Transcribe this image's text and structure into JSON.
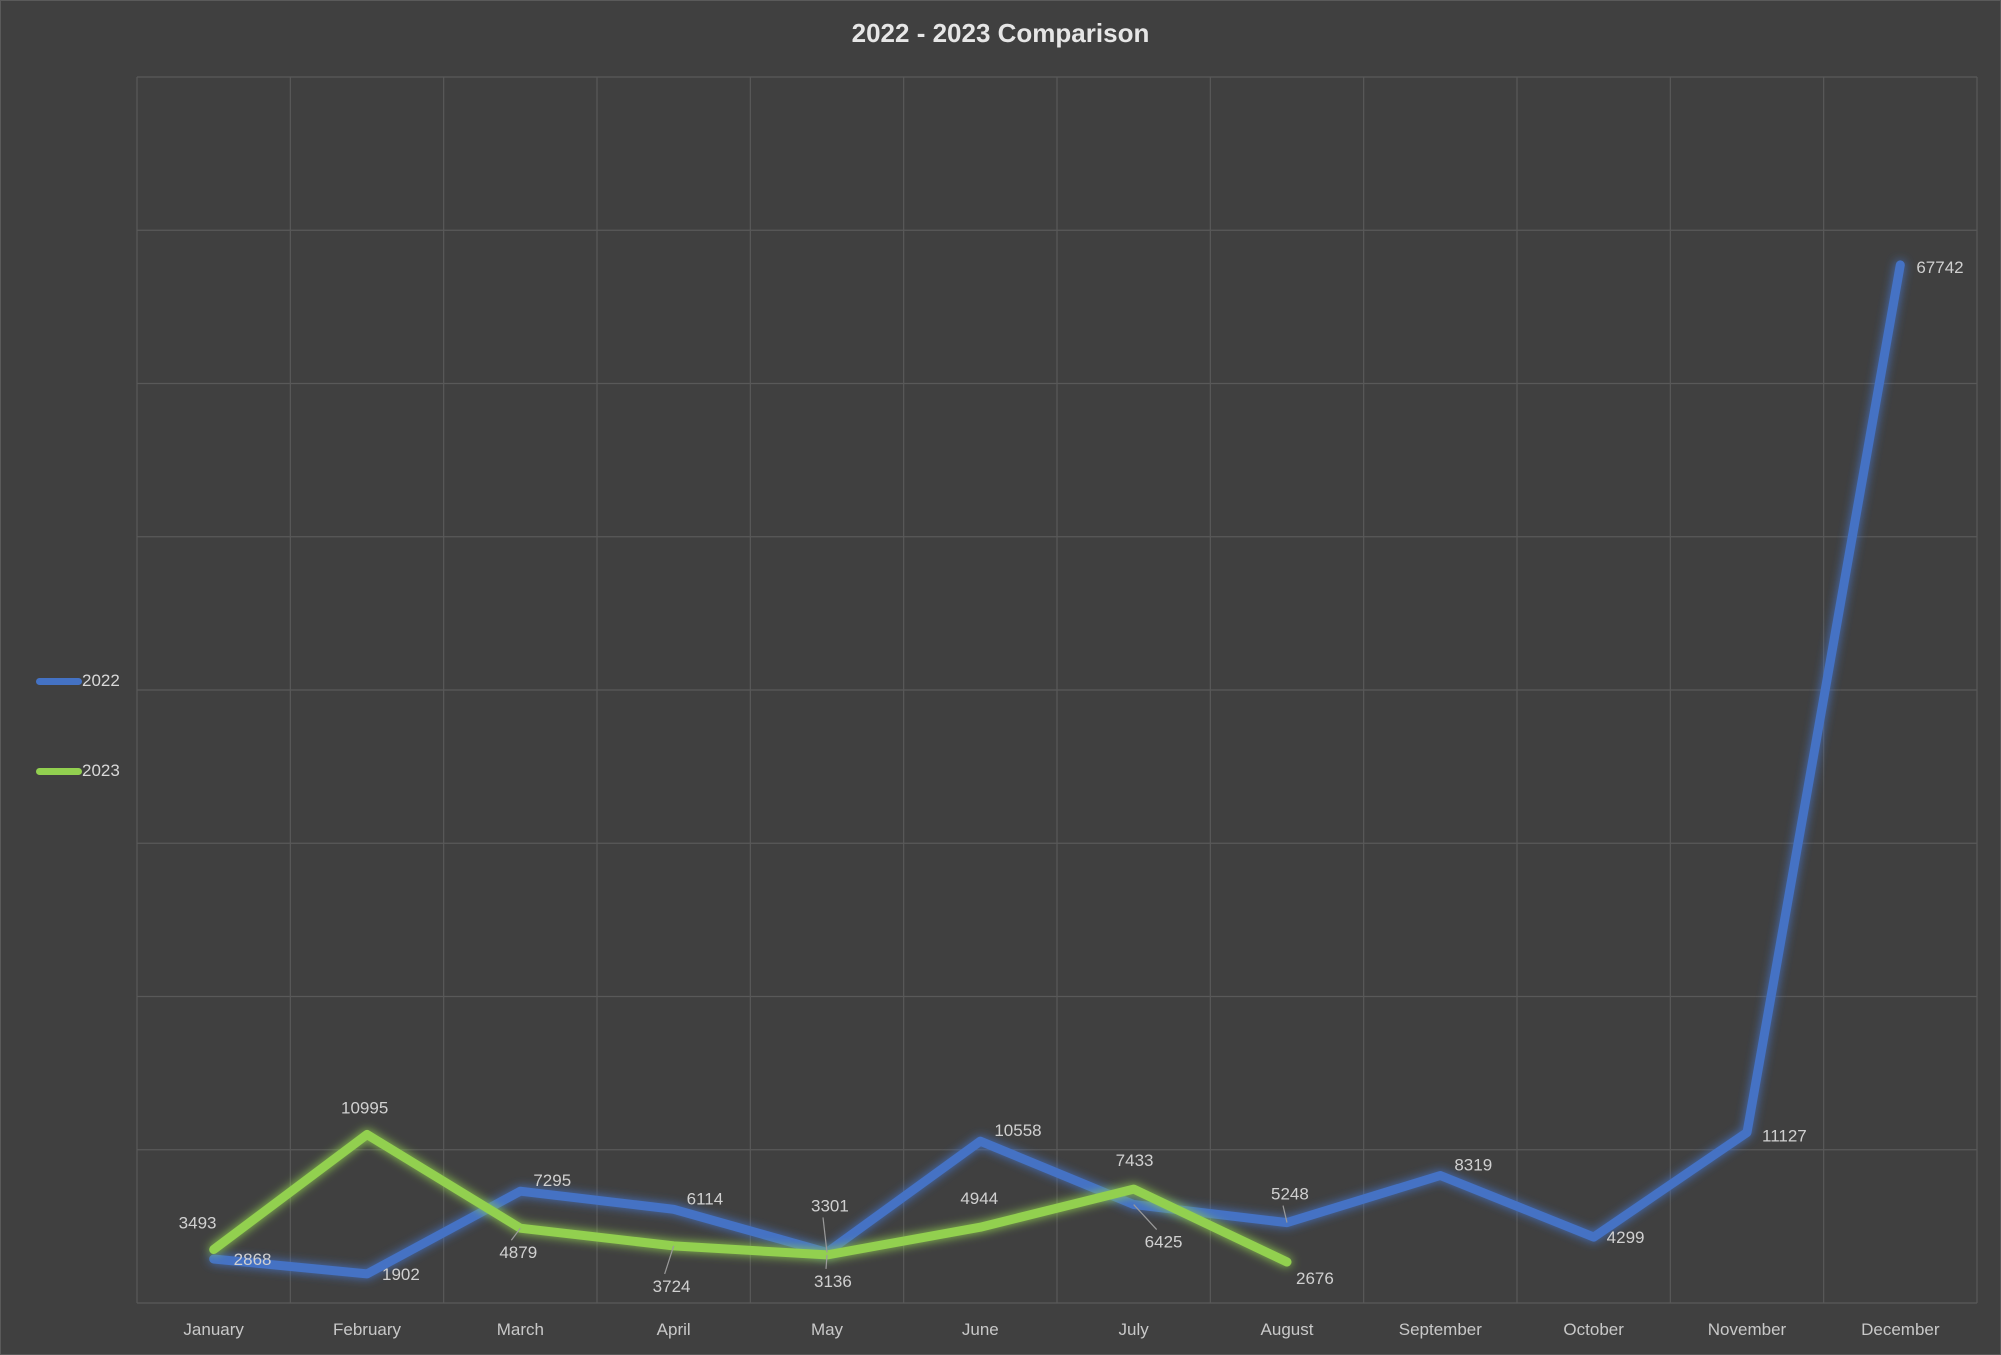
{
  "chart_data": {
    "type": "line",
    "title": "2022 - 2023 Comparison",
    "categories": [
      "January",
      "February",
      "March",
      "April",
      "May",
      "June",
      "July",
      "August",
      "September",
      "October",
      "November",
      "December"
    ],
    "ylim": [
      0,
      80000
    ],
    "grid": true,
    "legend_position": "left",
    "series": [
      {
        "name": "2022",
        "color": "#4472C4",
        "values": [
          2868,
          1902,
          7295,
          6114,
          3301,
          10558,
          6425,
          5248,
          8319,
          4299,
          11127,
          67742
        ]
      },
      {
        "name": "2023",
        "color": "#92D050",
        "values": [
          3493,
          10995,
          4879,
          3724,
          3136,
          4944,
          7433,
          2676,
          null,
          null,
          null,
          null
        ]
      }
    ]
  }
}
